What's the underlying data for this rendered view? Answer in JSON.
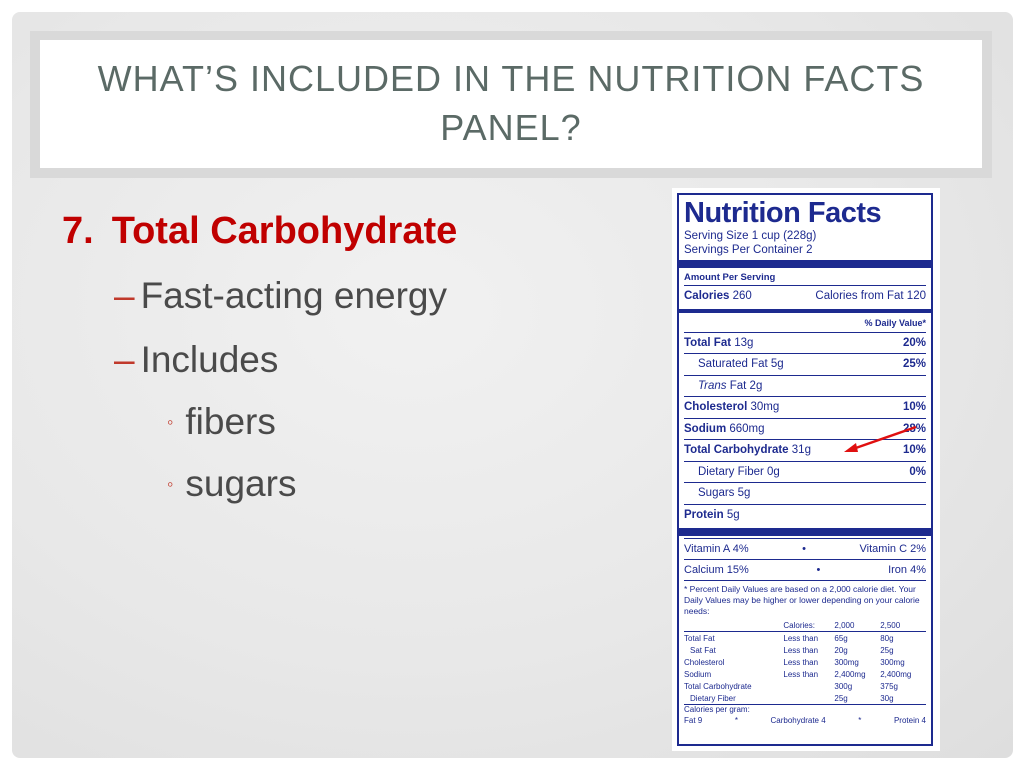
{
  "slide": {
    "title": "WHAT’S INCLUDED IN THE NUTRITION FACTS PANEL?",
    "heading": {
      "number": "7.",
      "text": "Total Carbohydrate"
    },
    "sub_bullets": [
      "Fast-acting energy",
      "Includes"
    ],
    "sub_sub_bullets": [
      "fibers",
      "sugars"
    ],
    "dash": "–",
    "circle": "◦"
  },
  "label": {
    "title": "Nutrition Facts",
    "serving_size": "Serving Size 1 cup (228g)",
    "servings_per_container": "Servings Per Container 2",
    "amount_per_serving": "Amount Per Serving",
    "calories_label": "Calories",
    "calories_value": "260",
    "calories_from_fat": "Calories from Fat 120",
    "daily_value_header": "% Daily Value*",
    "nutrients": [
      {
        "name": "Total Fat",
        "amount": "13g",
        "dv": "20%"
      },
      {
        "name": "Saturated Fat",
        "amount": "5g",
        "dv": "25%"
      },
      {
        "name": "Trans",
        "amount": "Fat 2g",
        "dv": ""
      },
      {
        "name": "Cholesterol",
        "amount": "30mg",
        "dv": "10%"
      },
      {
        "name": "Sodium",
        "amount": "660mg",
        "dv": "28%"
      },
      {
        "name": "Total Carbohydrate",
        "amount": "31g",
        "dv": "10%"
      },
      {
        "name": "Dietary Fiber",
        "amount": "0g",
        "dv": "0%"
      },
      {
        "name": "Sugars",
        "amount": "5g",
        "dv": ""
      },
      {
        "name": "Protein",
        "amount": "5g",
        "dv": ""
      }
    ],
    "vitamins": [
      {
        "left": "Vitamin A 4%",
        "right": "Vitamin C 2%"
      },
      {
        "left": "Calcium 15%",
        "right": "Iron 4%"
      }
    ],
    "bullet": "•",
    "footnote": "* Percent Daily Values are based on a 2,000 calorie diet. Your Daily Values may be higher or lower depending on your calorie needs:",
    "table": {
      "header": [
        "",
        "Calories:",
        "2,000",
        "2,500"
      ],
      "rows": [
        [
          "Total Fat",
          "Less than",
          "65g",
          "80g"
        ],
        [
          "Sat Fat",
          "Less than",
          "20g",
          "25g"
        ],
        [
          "Cholesterol",
          "Less than",
          "300mg",
          "300mg"
        ],
        [
          "Sodium",
          "Less than",
          "2,400mg",
          "2,400mg"
        ],
        [
          "Total Carbohydrate",
          "",
          "300g",
          "375g"
        ],
        [
          "Dietary Fiber",
          "",
          "25g",
          "30g"
        ]
      ]
    },
    "calories_per_gram": "Calories per gram:",
    "cpg_items": [
      "Fat 9",
      "*",
      "Carbohydrate 4",
      "*",
      "Protein 4"
    ]
  }
}
